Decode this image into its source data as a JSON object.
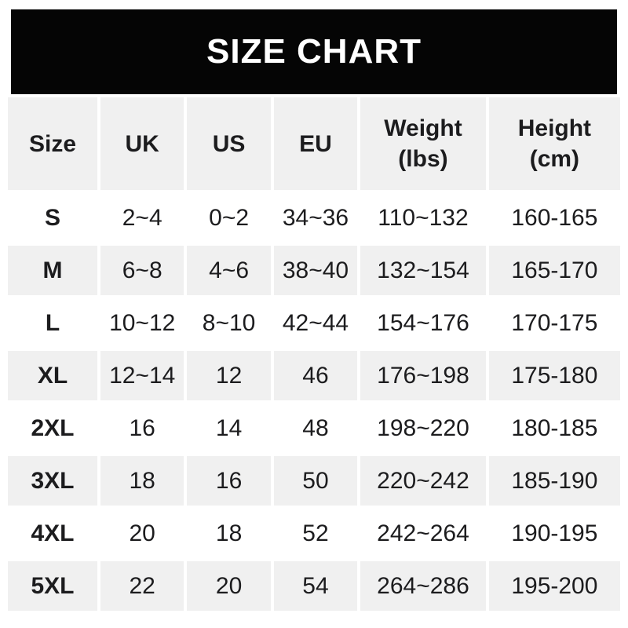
{
  "banner": {
    "title": "SIZE CHART"
  },
  "colors": {
    "banner_bg": "#050505",
    "banner_text": "#ffffff",
    "cell_gray": "#f0f0f0",
    "cell_white": "#ffffff",
    "text": "#1c1c1e",
    "page_bg": "#ffffff"
  },
  "chart_data": {
    "type": "table",
    "title": "SIZE CHART",
    "columns": [
      "Size",
      "UK",
      "US",
      "EU",
      "Weight (lbs)",
      "Height (cm)"
    ],
    "header_labels": [
      "Size",
      "UK",
      "US",
      "EU",
      "Weight\n(lbs)",
      "Height\n(cm)"
    ],
    "rows": [
      [
        "S",
        "2~4",
        "0~2",
        "34~36",
        "110~132",
        "160-165"
      ],
      [
        "M",
        "6~8",
        "4~6",
        "38~40",
        "132~154",
        "165-170"
      ],
      [
        "L",
        "10~12",
        "8~10",
        "42~44",
        "154~176",
        "170-175"
      ],
      [
        "XL",
        "12~14",
        "12",
        "46",
        "176~198",
        "175-180"
      ],
      [
        "2XL",
        "16",
        "14",
        "48",
        "198~220",
        "180-185"
      ],
      [
        "3XL",
        "18",
        "16",
        "50",
        "220~242",
        "185-190"
      ],
      [
        "4XL",
        "20",
        "18",
        "52",
        "242~264",
        "190-195"
      ],
      [
        "5XL",
        "22",
        "20",
        "54",
        "264~286",
        "195-200"
      ]
    ],
    "layout": {
      "striped": true,
      "header_background": "#f0f0f0",
      "stripe_order": [
        "white",
        "gray"
      ]
    }
  }
}
